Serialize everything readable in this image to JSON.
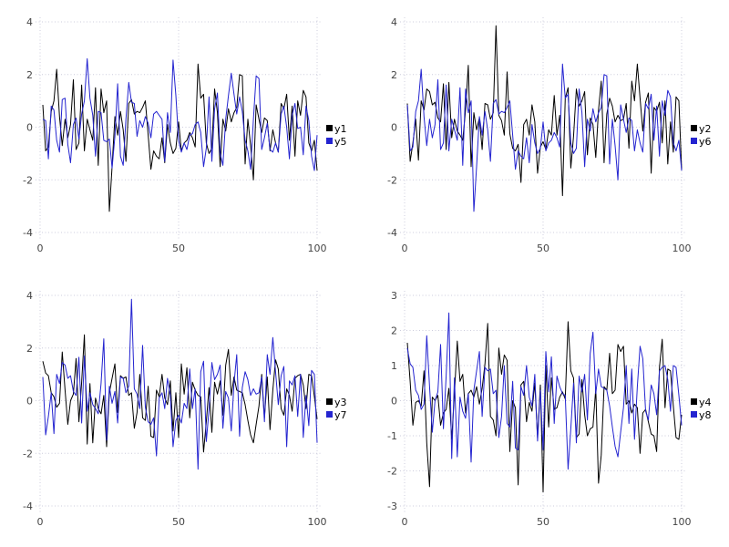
{
  "style": {
    "background": "#ffffff",
    "grid_color": "#ccccdc",
    "tick_label_color": "#454545",
    "legend_text_color": "#000000",
    "series_black": "#000000",
    "series_blue": "#2424d0"
  },
  "sequences": {
    "A": [
      0.85,
      -0.9,
      -0.75,
      0.6,
      1.0,
      2.2,
      0.4,
      -0.7,
      0.3,
      -0.4,
      0.1,
      1.8,
      -0.85,
      -0.6,
      1.6,
      -0.9,
      0.3,
      -0.1,
      -0.5,
      1.5,
      -1.45,
      1.45,
      0.55,
      1.0,
      -3.2,
      -1.5,
      0.4,
      -0.3,
      0.6,
      -0.1,
      -1.3,
      0.9,
      1.05,
      0.5,
      0.6,
      0.55,
      0.75,
      1.0,
      -0.3,
      -1.6,
      -0.9,
      -1.1,
      -1.2,
      -0.4,
      -1.35,
      0.1,
      -0.6,
      -1.0,
      -0.8,
      0.2,
      -0.9,
      -0.6,
      -0.5,
      -0.2,
      -0.4,
      -0.75,
      2.4,
      1.1,
      1.25,
      -0.6,
      -1.0,
      -0.8,
      1.45,
      0.55,
      -1.5,
      0.3,
      -0.15,
      0.7,
      0.2,
      0.55,
      0.75,
      2.0,
      1.95,
      -1.4,
      0.3,
      -0.7,
      -2.0,
      0.85,
      0.3,
      -0.2,
      0.35,
      0.25,
      -0.9,
      -0.1,
      -0.6,
      -0.95,
      0.9,
      0.7,
      1.25,
      -0.5,
      0.8,
      -1.1,
      1.0,
      0.45,
      1.4,
      1.15,
      -0.6,
      -0.9,
      -0.5,
      -1.65
    ],
    "B": [
      0.9,
      -1.3,
      -0.6,
      0.3,
      -1.25,
      1.0,
      0.65,
      1.45,
      1.35,
      0.85,
      0.95,
      0.35,
      0.2,
      1.65,
      -0.85,
      1.7,
      -0.4,
      0.3,
      -0.15,
      -0.3,
      -0.5,
      0.65,
      2.35,
      -1.5,
      0.55,
      -0.1,
      0.35,
      -0.85,
      0.9,
      0.85,
      0.3,
      0.55,
      3.85,
      0.45,
      0.25,
      -0.3,
      2.1,
      -0.25,
      -0.8,
      -0.9,
      -0.65,
      -2.1,
      0.1,
      0.3,
      -0.3,
      0.85,
      0.2,
      -1.75,
      -0.75,
      -0.55,
      -0.85,
      -0.1,
      -0.3,
      1.2,
      -0.3,
      0.45,
      -2.6,
      1.1,
      1.5,
      -1.55,
      -0.35,
      1.45,
      0.8,
      1.0,
      1.35,
      -1.05,
      0.35,
      0.1,
      -1.15,
      0.65,
      1.75,
      -1.35,
      0.5,
      1.1,
      0.8,
      0.2,
      0.45,
      0.25,
      0.3,
      0.9,
      -0.8,
      1.75,
      1.0,
      2.4,
      1.1,
      -0.15,
      0.95,
      1.3,
      -1.75,
      0.75,
      0.6,
      0.95,
      -0.6,
      1.0,
      -1.4,
      0.2,
      -0.95,
      1.15,
      1.0,
      -1.6
    ],
    "C": [
      1.5,
      1.05,
      0.95,
      0.3,
      0.15,
      -0.25,
      -0.1,
      1.85,
      0.4,
      -0.9,
      0.0,
      0.25,
      1.6,
      -0.8,
      0.7,
      2.5,
      -1.65,
      0.65,
      -1.6,
      0.1,
      -0.3,
      -0.5,
      0.2,
      -1.75,
      0.3,
      0.85,
      1.4,
      -0.45,
      0.95,
      0.85,
      0.9,
      0.2,
      0.3,
      -1.05,
      -0.45,
      1.0,
      -0.65,
      -0.75,
      0.55,
      -1.35,
      -1.4,
      0.4,
      0.15,
      1.0,
      0.1,
      -0.15,
      0.75,
      -1.15,
      0.3,
      -1.4,
      1.4,
      0.25,
      1.25,
      -0.65,
      0.7,
      0.4,
      0.2,
      0.15,
      -1.95,
      -0.8,
      0.5,
      -1.2,
      0.7,
      0.25,
      0.75,
      -0.55,
      1.35,
      1.95,
      0.2,
      0.9,
      0.4,
      0.35,
      0.3,
      -0.15,
      -0.75,
      -1.3,
      -1.6,
      -0.9,
      -0.2,
      1.0,
      -0.65,
      0.9,
      -1.1,
      0.4,
      1.55,
      1.2,
      -0.3,
      -0.55,
      0.45,
      0.2,
      -0.4,
      0.85,
      0.95,
      1.0,
      0.6,
      -0.3,
      1.0,
      0.95,
      0.15,
      -0.7
    ],
    "D": [
      1.65,
      0.55,
      -0.7,
      -0.05,
      0.0,
      -0.15,
      0.85,
      -1.2,
      -2.45,
      0.1,
      0.0,
      0.15,
      -0.7,
      -0.35,
      -0.25,
      0.35,
      -1.1,
      0.2,
      1.7,
      0.55,
      0.75,
      -0.35,
      0.2,
      0.3,
      0.1,
      0.4,
      -0.1,
      0.35,
      1.05,
      2.2,
      -0.45,
      -0.55,
      -1.0,
      1.5,
      0.75,
      1.3,
      1.15,
      -1.45,
      0.0,
      -0.2,
      -2.4,
      0.45,
      0.55,
      -0.6,
      -0.05,
      -0.3,
      0.5,
      -1.05,
      0.45,
      -2.6,
      1.0,
      -0.75,
      0.65,
      -0.25,
      -0.2,
      0.1,
      0.25,
      0.05,
      2.25,
      0.85,
      0.65,
      -1.05,
      -0.95,
      0.6,
      -0.4,
      -1.0,
      -0.8,
      -0.75,
      0.35,
      -2.35,
      -1.55,
      0.4,
      0.3,
      1.35,
      0.2,
      0.3,
      1.6,
      1.4,
      1.55,
      -0.1,
      0.0,
      -0.35,
      -0.1,
      -0.2,
      -1.5,
      -0.35,
      -0.25,
      -0.6,
      -0.95,
      -1.0,
      -1.45,
      0.95,
      1.75,
      -0.2,
      0.9,
      0.85,
      -0.15,
      -1.05,
      -1.1,
      -0.4
    ],
    "E": [
      0.3,
      0.25,
      -1.2,
      0.8,
      0.65,
      -0.5,
      -0.95,
      1.05,
      1.1,
      -0.65,
      -1.35,
      0.1,
      0.35,
      -0.45,
      0.5,
      1.0,
      2.6,
      1.1,
      0.45,
      -1.1,
      0.6,
      0.55,
      -0.5,
      -0.55,
      -0.45,
      -1.55,
      -0.35,
      1.65,
      -1.1,
      -1.45,
      0.3,
      1.7,
      0.95,
      0.9,
      -0.35,
      0.25,
      0.0,
      0.4,
      0.15,
      -0.4,
      0.5,
      0.6,
      0.45,
      0.3,
      -1.3,
      0.55,
      -0.2,
      2.55,
      1.2,
      -0.5,
      -0.95,
      -0.6,
      -0.85,
      -0.3,
      -0.25,
      0.1,
      0.2,
      -0.2,
      -1.5,
      -0.8,
      1.15,
      -1.3,
      0.7,
      1.3,
      -1.0,
      -1.45,
      0.3,
      1.2,
      2.05,
      1.25,
      0.5,
      1.15,
      0.6,
      -0.5,
      -0.9,
      -1.6,
      0.3,
      1.95,
      1.85,
      -0.85,
      -0.4,
      0.15,
      -0.85,
      -0.95,
      -0.6,
      -0.95,
      0.5,
      0.8,
      0.0,
      -1.2,
      0.45,
      0.9,
      -0.05,
      0.0,
      -1.05,
      0.8,
      0.25,
      -1.1,
      -1.65,
      -0.3
    ]
  },
  "chart_data": [
    {
      "type": "line",
      "position": "top-left",
      "title": "",
      "xlim": [
        0,
        100
      ],
      "ylim": [
        -4,
        4
      ],
      "x_ticks": [
        0,
        50,
        100
      ],
      "y_ticks": [
        4,
        2,
        0,
        -2,
        -4
      ],
      "x_start": 1,
      "x_step": 1,
      "grid": true,
      "legend_position": "right-center",
      "series": [
        {
          "name": "y1",
          "color": "#000000",
          "sequence": "A"
        },
        {
          "name": "y5",
          "color": "#2424d0",
          "sequence": "E"
        }
      ]
    },
    {
      "type": "line",
      "position": "top-right",
      "title": "",
      "xlim": [
        0,
        100
      ],
      "ylim": [
        -4,
        4
      ],
      "x_ticks": [
        0,
        50,
        100
      ],
      "y_ticks": [
        4,
        2,
        0,
        -2,
        -4
      ],
      "x_start": 1,
      "x_step": 1,
      "grid": true,
      "legend_position": "right-center",
      "series": [
        {
          "name": "y2",
          "color": "#000000",
          "sequence": "B"
        },
        {
          "name": "y6",
          "color": "#2424d0",
          "sequence": "A"
        }
      ]
    },
    {
      "type": "line",
      "position": "bottom-left",
      "title": "",
      "xlim": [
        0,
        100
      ],
      "ylim": [
        -4,
        4
      ],
      "x_ticks": [
        0,
        50,
        100
      ],
      "y_ticks": [
        4,
        2,
        0,
        -2,
        -4
      ],
      "x_start": 1,
      "x_step": 1,
      "grid": true,
      "legend_position": "right-center",
      "series": [
        {
          "name": "y3",
          "color": "#000000",
          "sequence": "C"
        },
        {
          "name": "y7",
          "color": "#2424d0",
          "sequence": "B"
        }
      ]
    },
    {
      "type": "line",
      "position": "bottom-right",
      "title": "",
      "xlim": [
        0,
        100
      ],
      "ylim": [
        -3,
        3
      ],
      "x_ticks": [
        0,
        50,
        100
      ],
      "y_ticks": [
        3,
        2,
        1,
        0,
        -1,
        -2,
        -3
      ],
      "x_start": 1,
      "x_step": 1,
      "grid": true,
      "legend_position": "right-center",
      "series": [
        {
          "name": "y4",
          "color": "#000000",
          "sequence": "D"
        },
        {
          "name": "y8",
          "color": "#2424d0",
          "sequence": "C"
        }
      ]
    }
  ]
}
